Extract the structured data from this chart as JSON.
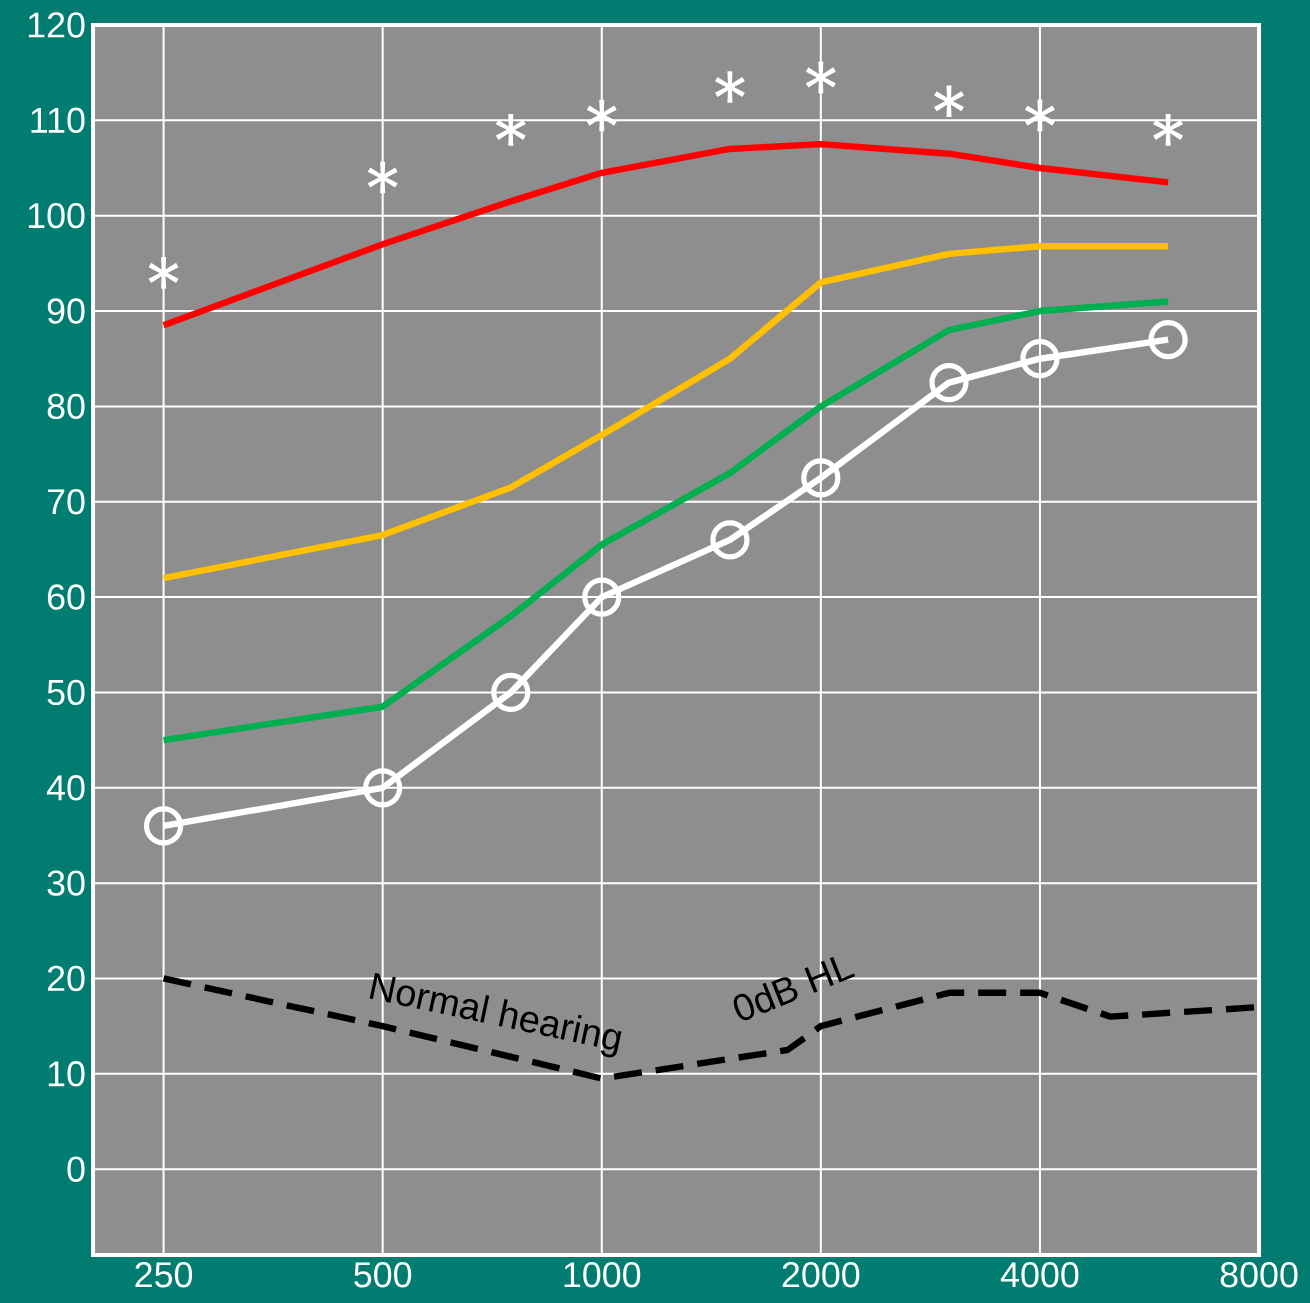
{
  "chart_data": {
    "type": "line",
    "log": "x",
    "grid": true,
    "xlim": [
      200,
      8000
    ],
    "ylim": [
      -9,
      120
    ],
    "xticks": [
      250,
      500,
      1000,
      2000,
      4000,
      8000
    ],
    "yticks": [
      0,
      10,
      20,
      30,
      40,
      50,
      60,
      70,
      80,
      90,
      100,
      110,
      120
    ],
    "series": [
      {
        "color": "#ff0000",
        "x": [
          250,
          500,
          750,
          1000,
          1500,
          2000,
          3000,
          4000,
          6000
        ],
        "values": [
          88.5,
          97,
          101.5,
          104.5,
          107,
          107.5,
          106.5,
          105,
          103.5
        ]
      },
      {
        "color": "#ffc000",
        "x": [
          250,
          500,
          750,
          1000,
          1500,
          2000,
          3000,
          4000,
          6000
        ],
        "values": [
          62,
          66.5,
          71.5,
          77,
          85,
          93,
          96,
          96.8,
          96.8
        ]
      },
      {
        "color": "#00b050",
        "x": [
          250,
          500,
          750,
          1000,
          1500,
          2000,
          3000,
          4000,
          6000
        ],
        "values": [
          45,
          48.5,
          58,
          65.5,
          73,
          80,
          88,
          90,
          91
        ]
      },
      {
        "color": "#ffffff",
        "marker": "circle",
        "x": [
          250,
          500,
          750,
          1000,
          1500,
          2000,
          3000,
          4000,
          6000
        ],
        "values": [
          36,
          40,
          50,
          60,
          66,
          72.5,
          82.5,
          85,
          87
        ]
      },
      {
        "type": "scatter",
        "color": "#ffffff",
        "marker": "star",
        "x": [
          250,
          500,
          750,
          1000,
          1500,
          2000,
          3000,
          4000,
          6000
        ],
        "values": [
          94,
          104,
          109,
          110.5,
          113.5,
          114.5,
          112,
          110.5,
          109
        ]
      },
      {
        "color": "#000000",
        "line_style": "dashed",
        "x": [
          250,
          500,
          1000,
          1800,
          2000,
          3000,
          4000,
          5000,
          8000
        ],
        "values": [
          20,
          15,
          9.5,
          12.5,
          15,
          18.5,
          18.5,
          16,
          17
        ]
      }
    ],
    "annotations": [
      "Normal hearing",
      "0dB HL"
    ]
  }
}
